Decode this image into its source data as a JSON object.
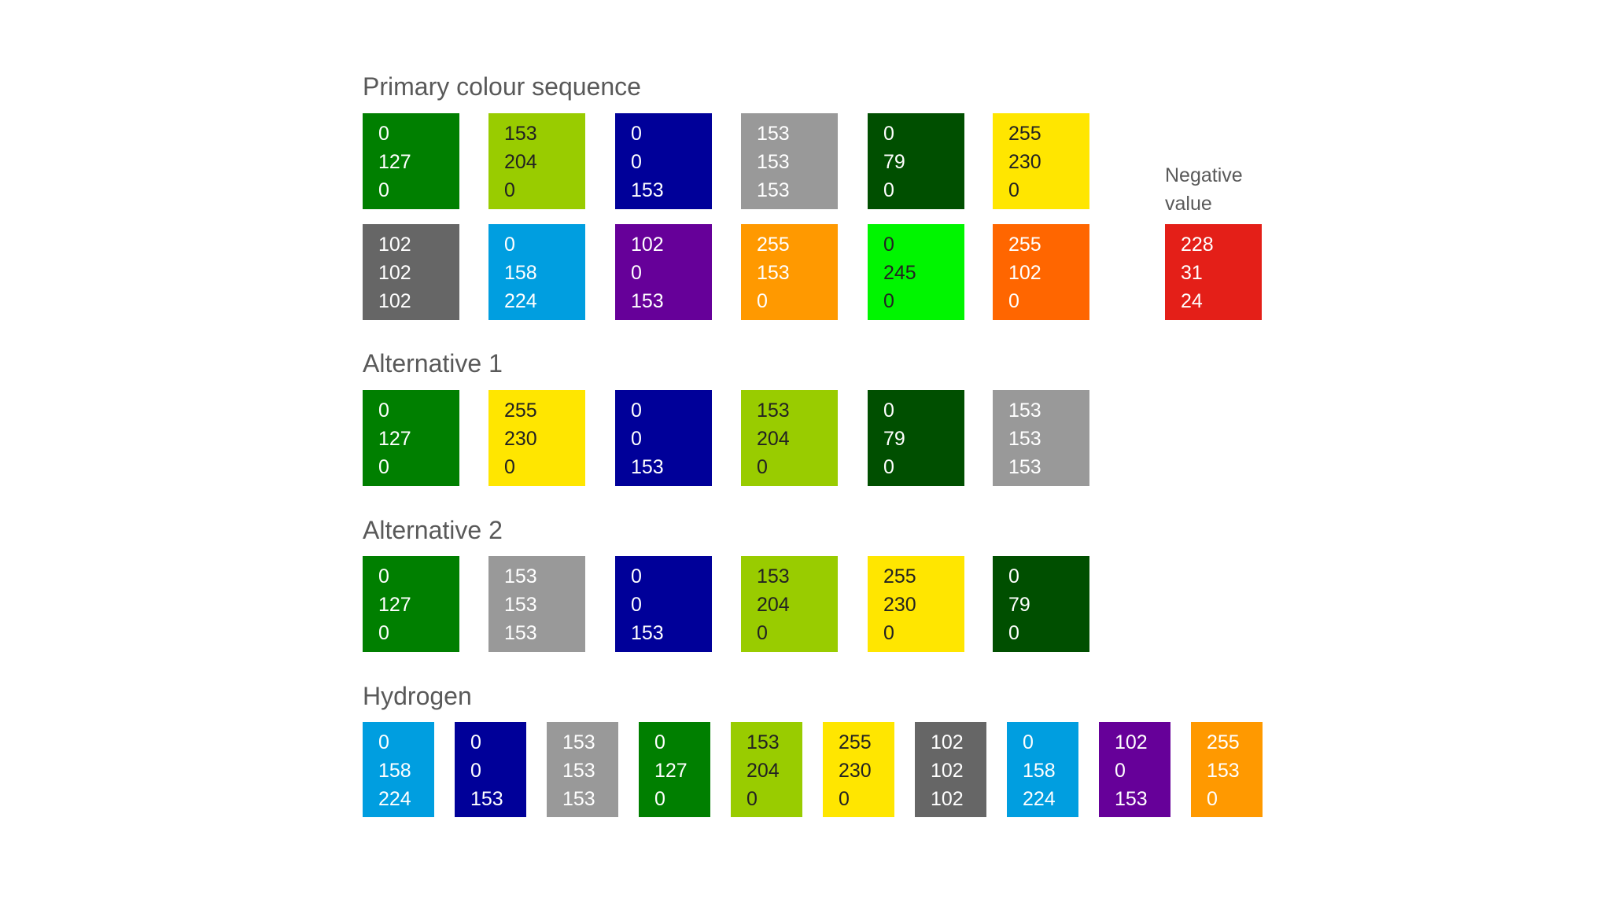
{
  "colors": {
    "title_text": "#595959",
    "dark_text": "#222222",
    "light_text": "#ffffff"
  },
  "sections": {
    "primary": {
      "title": "Primary colour sequence",
      "swatches": [
        {
          "values": [
            "0",
            "127",
            "0"
          ],
          "color": "#007F00"
        },
        {
          "values": [
            "153",
            "204",
            "0"
          ],
          "color": "#99CC00"
        },
        {
          "values": [
            "0",
            "0",
            "153"
          ],
          "color": "#000099"
        },
        {
          "values": [
            "153",
            "153",
            "153"
          ],
          "color": "#999999"
        },
        {
          "values": [
            "0",
            "79",
            "0"
          ],
          "color": "#004F00"
        },
        {
          "values": [
            "255",
            "230",
            "0"
          ],
          "color": "#FFE600"
        },
        {
          "values": [
            "102",
            "102",
            "102"
          ],
          "color": "#666666"
        },
        {
          "values": [
            "0",
            "158",
            "224"
          ],
          "color": "#009EE0"
        },
        {
          "values": [
            "102",
            "0",
            "153"
          ],
          "color": "#660099"
        },
        {
          "values": [
            "255",
            "153",
            "0"
          ],
          "color": "#FF9900"
        },
        {
          "values": [
            "0",
            "245",
            "0"
          ],
          "color": "#00F500"
        },
        {
          "values": [
            "255",
            "102",
            "0"
          ],
          "color": "#FF6600"
        }
      ]
    },
    "negative": {
      "label": "Negative value",
      "swatch": {
        "values": [
          "228",
          "31",
          "24"
        ],
        "color": "#E41F18"
      }
    },
    "alternative1": {
      "title": "Alternative 1",
      "swatches": [
        {
          "values": [
            "0",
            "127",
            "0"
          ],
          "color": "#007F00"
        },
        {
          "values": [
            "255",
            "230",
            "0"
          ],
          "color": "#FFE600"
        },
        {
          "values": [
            "0",
            "0",
            "153"
          ],
          "color": "#000099"
        },
        {
          "values": [
            "153",
            "204",
            "0"
          ],
          "color": "#99CC00"
        },
        {
          "values": [
            "0",
            "79",
            "0"
          ],
          "color": "#004F00"
        },
        {
          "values": [
            "153",
            "153",
            "153"
          ],
          "color": "#999999"
        }
      ]
    },
    "alternative2": {
      "title": "Alternative 2",
      "swatches": [
        {
          "values": [
            "0",
            "127",
            "0"
          ],
          "color": "#007F00"
        },
        {
          "values": [
            "153",
            "153",
            "153"
          ],
          "color": "#999999"
        },
        {
          "values": [
            "0",
            "0",
            "153"
          ],
          "color": "#000099"
        },
        {
          "values": [
            "153",
            "204",
            "0"
          ],
          "color": "#99CC00"
        },
        {
          "values": [
            "255",
            "230",
            "0"
          ],
          "color": "#FFE600"
        },
        {
          "values": [
            "0",
            "79",
            "0"
          ],
          "color": "#004F00"
        }
      ]
    },
    "hydrogen": {
      "title": "Hydrogen",
      "swatches": [
        {
          "values": [
            "0",
            "158",
            "224"
          ],
          "color": "#009EE0"
        },
        {
          "values": [
            "0",
            "0",
            "153"
          ],
          "color": "#000099"
        },
        {
          "values": [
            "153",
            "153",
            "153"
          ],
          "color": "#999999"
        },
        {
          "values": [
            "0",
            "127",
            "0"
          ],
          "color": "#007F00"
        },
        {
          "values": [
            "153",
            "204",
            "0"
          ],
          "color": "#99CC00"
        },
        {
          "values": [
            "255",
            "230",
            "0"
          ],
          "color": "#FFE600"
        },
        {
          "values": [
            "102",
            "102",
            "102"
          ],
          "color": "#666666"
        },
        {
          "values": [
            "0",
            "158",
            "224"
          ],
          "color": "#009EE0"
        },
        {
          "values": [
            "102",
            "0",
            "153"
          ],
          "color": "#660099"
        },
        {
          "values": [
            "255",
            "153",
            "0"
          ],
          "color": "#FF9900"
        }
      ]
    }
  }
}
